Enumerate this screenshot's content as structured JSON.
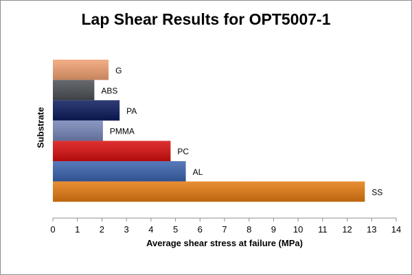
{
  "chart_data": {
    "type": "bar",
    "orientation": "horizontal",
    "title": "Lap Shear Results for OPT5007-1",
    "xlabel": "Average shear stress at failure (MPa)",
    "ylabel": "Substrate",
    "xlim": [
      0,
      14
    ],
    "xticks": [
      0,
      1,
      2,
      3,
      4,
      5,
      6,
      7,
      8,
      9,
      10,
      11,
      12,
      13,
      14
    ],
    "grid": false,
    "legend": "none",
    "categories": [
      "G",
      "ABS",
      "PA",
      "PMMA",
      "PC",
      "AL",
      "SS"
    ],
    "values": [
      2.27,
      1.69,
      2.72,
      2.04,
      4.8,
      5.42,
      12.72
    ],
    "colors": [
      "#f0a070",
      "#4a4f55",
      "#0a1a5c",
      "#7585b8",
      "#d80d0d",
      "#3a62ad",
      "#e47a10"
    ]
  }
}
